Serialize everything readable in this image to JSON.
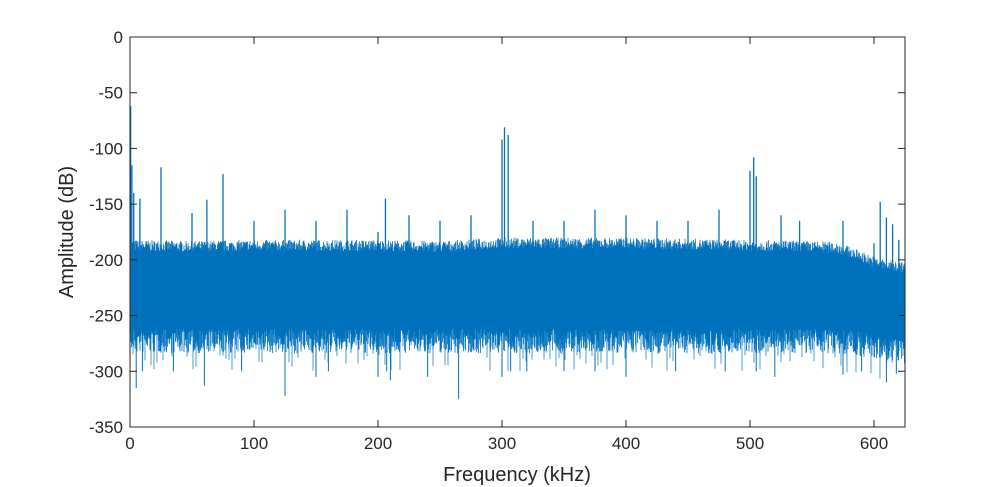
{
  "chart_data": {
    "type": "line",
    "title": "",
    "xlabel": "Frequency (kHz)",
    "ylabel": "Amplitude (dB)",
    "xlim": [
      0,
      625
    ],
    "ylim": [
      -350,
      0
    ],
    "xticks": [
      0,
      100,
      200,
      300,
      400,
      500,
      600
    ],
    "yticks": [
      0,
      -50,
      -100,
      -150,
      -200,
      -250,
      -300,
      -350
    ],
    "grid": false,
    "legend": "none",
    "line_color": "#0072BD",
    "series": [
      {
        "noise_floor": {
          "x": [
            0,
            50,
            100,
            150,
            200,
            250,
            300,
            350,
            400,
            450,
            500,
            550,
            570,
            580,
            590,
            600,
            610,
            625
          ],
          "upper": [
            -192,
            -193,
            -192,
            -192,
            -192,
            -193,
            -190,
            -190,
            -190,
            -191,
            -192,
            -193,
            -194,
            -198,
            -202,
            -207,
            -210,
            -212
          ],
          "lower": [
            -262,
            -262,
            -262,
            -262,
            -262,
            -262,
            -262,
            -262,
            -262,
            -262,
            -262,
            -262,
            -262,
            -263,
            -265,
            -268,
            -270,
            -272
          ]
        },
        "spikes": {
          "x": [
            0.5,
            1.5,
            3,
            8,
            25,
            50,
            62,
            75,
            100,
            125,
            150,
            175,
            200,
            206,
            225,
            250,
            275,
            300,
            302,
            305,
            325,
            350,
            375,
            400,
            425,
            450,
            475,
            500,
            503,
            505,
            525,
            540,
            575,
            600,
            605,
            610,
            615,
            620
          ],
          "y": [
            -62,
            -115,
            -140,
            -145,
            -117,
            -158,
            -146,
            -123,
            -165,
            -155,
            -165,
            -155,
            -175,
            -145,
            -160,
            -165,
            -160,
            -92,
            -81,
            -88,
            -165,
            -165,
            -155,
            -160,
            -165,
            -165,
            -155,
            -120,
            -108,
            -125,
            -160,
            -165,
            -165,
            -185,
            -148,
            -162,
            -168,
            -182
          ]
        },
        "dips": {
          "x": [
            5,
            10,
            35,
            60,
            90,
            125,
            150,
            160,
            200,
            207,
            210,
            240,
            265,
            300,
            307,
            320,
            350,
            375,
            400,
            440,
            480,
            505,
            520,
            575,
            590,
            610,
            618
          ],
          "y": [
            -315,
            -300,
            -300,
            -313,
            -300,
            -322,
            -305,
            -300,
            -305,
            -300,
            -308,
            -305,
            -325,
            -305,
            -300,
            -300,
            -300,
            -300,
            -305,
            -300,
            -300,
            -300,
            -305,
            -303,
            -300,
            -310,
            -302
          ]
        }
      }
    ]
  }
}
